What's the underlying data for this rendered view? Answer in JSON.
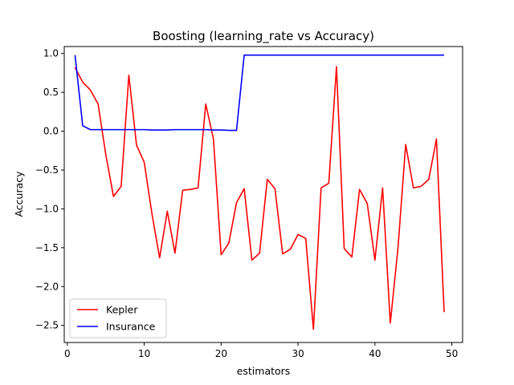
{
  "chart_data": {
    "type": "line",
    "title": "Boosting (learning_rate vs Accuracy)",
    "xlabel": "estimators",
    "ylabel": "Accuracy",
    "xlim": [
      -0.4,
      51.4
    ],
    "ylim": [
      -2.72,
      1.09
    ],
    "xticks": [
      0,
      10,
      20,
      30,
      40,
      50
    ],
    "yticks": [
      1.0,
      0.5,
      0.0,
      -0.5,
      -1.0,
      -1.5,
      -2.0,
      -2.5
    ],
    "ytick_labels": [
      "1.0",
      "0.5",
      "0.0",
      "−0.5",
      "−1.0",
      "−1.5",
      "−2.0",
      "−2.5"
    ],
    "grid": false,
    "legend_position": "lower-left",
    "series": [
      {
        "name": "Kepler",
        "color": "#ff0000",
        "x": [
          1,
          2,
          3,
          4,
          5,
          6,
          7,
          8,
          9,
          10,
          11,
          12,
          13,
          14,
          15,
          16,
          17,
          18,
          19,
          20,
          21,
          22,
          23,
          24,
          25,
          26,
          27,
          28,
          29,
          30,
          31,
          32,
          33,
          34,
          35,
          36,
          37,
          38,
          39,
          40,
          41,
          42,
          43,
          44,
          45,
          46,
          47,
          48,
          49
        ],
        "y": [
          0.82,
          0.63,
          0.53,
          0.35,
          -0.3,
          -0.84,
          -0.71,
          0.72,
          -0.18,
          -0.4,
          -1.06,
          -1.63,
          -1.03,
          -1.57,
          -0.76,
          -0.75,
          -0.73,
          0.35,
          -0.1,
          -1.59,
          -1.44,
          -0.92,
          -0.74,
          -1.66,
          -1.57,
          -0.62,
          -0.74,
          -1.58,
          -1.52,
          -1.33,
          -1.38,
          -2.55,
          -0.73,
          -0.67,
          0.83,
          -1.51,
          -1.62,
          -0.75,
          -0.93,
          -1.66,
          -0.73,
          -2.47,
          -1.5,
          -0.17,
          -0.73,
          -0.71,
          -0.62,
          -0.1,
          -2.33
        ]
      },
      {
        "name": "Insurance",
        "color": "#0000ff",
        "x": [
          1,
          2,
          3,
          4,
          5,
          6,
          7,
          8,
          9,
          10,
          11,
          12,
          13,
          14,
          15,
          16,
          17,
          18,
          19,
          20,
          21,
          22,
          23,
          24,
          25,
          26,
          27,
          28,
          29,
          30,
          31,
          32,
          33,
          34,
          35,
          36,
          37,
          38,
          39,
          40,
          41,
          42,
          43,
          44,
          45,
          46,
          47,
          48,
          49
        ],
        "y": [
          0.98,
          0.07,
          0.02,
          0.02,
          0.02,
          0.02,
          0.02,
          0.02,
          0.02,
          0.02,
          0.015,
          0.015,
          0.015,
          0.02,
          0.02,
          0.02,
          0.02,
          0.02,
          0.015,
          0.015,
          0.01,
          0.01,
          0.98,
          0.98,
          0.98,
          0.98,
          0.98,
          0.98,
          0.98,
          0.98,
          0.98,
          0.98,
          0.98,
          0.98,
          0.98,
          0.98,
          0.98,
          0.98,
          0.98,
          0.98,
          0.98,
          0.98,
          0.98,
          0.98,
          0.98,
          0.98,
          0.98,
          0.98,
          0.98
        ]
      }
    ]
  }
}
